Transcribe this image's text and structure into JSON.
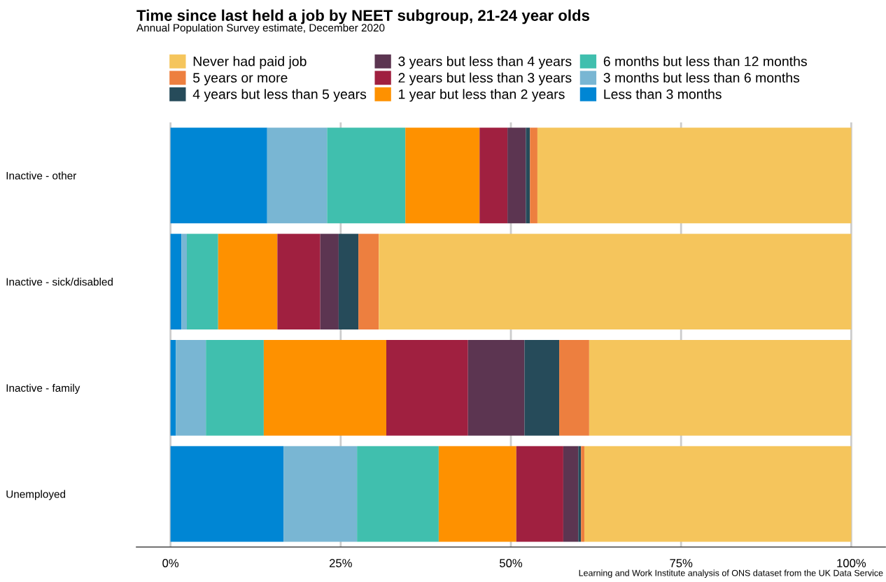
{
  "chart_data": {
    "type": "bar",
    "orientation": "horizontal",
    "stacked": true,
    "title": "Time since last held a job by NEET subgroup, 21-24 year olds",
    "subtitle": "Annual Population Survey estimate, December 2020",
    "categories": [
      "Inactive - other",
      "Inactive - sick/disabled",
      "Inactive - family",
      "Unemployed"
    ],
    "series": [
      {
        "name": "Less than 3 months",
        "color": "#0086d4",
        "values": [
          14.2,
          1.6,
          0.8,
          16.6
        ]
      },
      {
        "name": "3 months but less than 6 months",
        "color": "#79b6d3",
        "values": [
          8.8,
          0.8,
          4.4,
          10.8
        ]
      },
      {
        "name": "6 months but less than 12 months",
        "color": "#40bfae",
        "values": [
          11.5,
          4.6,
          8.5,
          12.0
        ]
      },
      {
        "name": "1 year but less than 2 years",
        "color": "#fe9100",
        "values": [
          10.9,
          8.7,
          18.0,
          11.4
        ]
      },
      {
        "name": "2 years but less than 3 years",
        "color": "#a02040",
        "values": [
          4.1,
          6.3,
          12.0,
          6.9
        ]
      },
      {
        "name": "3 years but less than 4 years",
        "color": "#5c3551",
        "values": [
          2.7,
          2.7,
          8.3,
          2.2
        ]
      },
      {
        "name": "4 years but less than 5 years",
        "color": "#264b5a",
        "values": [
          0.6,
          2.9,
          5.1,
          0.4
        ]
      },
      {
        "name": "5 years or more",
        "color": "#ed7f3f",
        "values": [
          1.1,
          3.0,
          4.4,
          0.5
        ]
      },
      {
        "name": "Never had paid job",
        "color": "#f5c55c",
        "values": [
          46.1,
          69.4,
          38.5,
          39.2
        ]
      }
    ],
    "xlim": [
      -5,
      105
    ],
    "xticks": [
      {
        "value": 0,
        "label": "0%"
      },
      {
        "value": 25,
        "label": "25%"
      },
      {
        "value": 50,
        "label": "50%"
      },
      {
        "value": 75,
        "label": "75%"
      },
      {
        "value": 100,
        "label": "100%"
      }
    ],
    "grid": "x",
    "legend": "top",
    "annotations": [
      "Learning and Work Institute analysis of ONS dataset from the UK Data Service"
    ]
  }
}
